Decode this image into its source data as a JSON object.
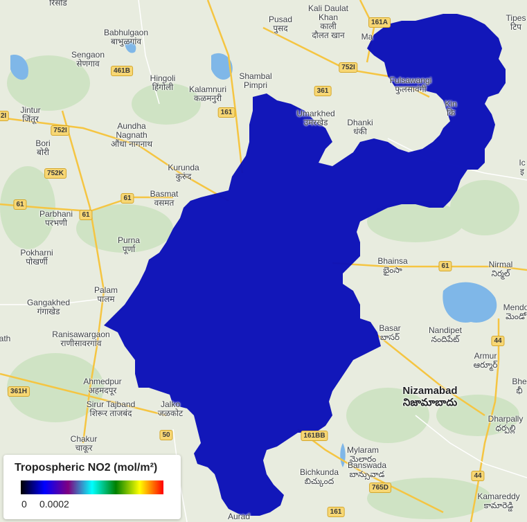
{
  "layer": {
    "fill_color": "#0a0fb8",
    "legend": {
      "title": "Tropospheric NO2 (mol/m²)",
      "min_label": "0",
      "max_label": "0.0002",
      "palette": [
        "#000000",
        "#0000ff",
        "#800080",
        "#00ffff",
        "#008000",
        "#ffff00",
        "#ff0000"
      ]
    }
  },
  "basemap": {
    "land_color": "#e8ecdf",
    "water_color": "#7fb7e8",
    "road_color": "#f5c542",
    "places": {
      "risod": {
        "name": "रिसोड",
        "local": ""
      },
      "pusad": {
        "name": "Pusad",
        "local": "पुसद"
      },
      "kali_daulat": {
        "name": "Kali Daulat",
        "local": "Khan"
      },
      "kali_daulat_2": {
        "name": "काली",
        "local": "दौलत खान"
      },
      "tipeshwar": {
        "name": "Tipes",
        "local": "टिप"
      },
      "babhulgaon": {
        "name": "Babhulgaon",
        "local": "बाभुळगांव"
      },
      "sengaon": {
        "name": "Sengaon",
        "local": "सेणगाव"
      },
      "hingoli": {
        "name": "Hingoli",
        "local": "हिंगोली"
      },
      "kalamnuri": {
        "name": "Kalamnuri",
        "local": "कळमनुरी"
      },
      "shambal": {
        "name": "Shambal",
        "local": "Pimpri"
      },
      "fulsawangi": {
        "name": "Fulsawangi",
        "local": "फुलसावंगी"
      },
      "umarkhed": {
        "name": "Umarkhed",
        "local": "उमरखेड"
      },
      "dhanki": {
        "name": "Dhanki",
        "local": "धंकी"
      },
      "jintur": {
        "name": "Jintur",
        "local": "जिंतूर"
      },
      "aundha": {
        "name": "Aundha",
        "local": "Nagnath"
      },
      "aundha_local": {
        "name": "औंधा नागनाथ",
        "local": ""
      },
      "bori": {
        "name": "Bori",
        "local": "बोरी"
      },
      "kurunda": {
        "name": "Kurunda",
        "local": "कुरुंद"
      },
      "basmat": {
        "name": "Basmat",
        "local": "वसमत"
      },
      "parbhani": {
        "name": "Parbhani",
        "local": "परभणी"
      },
      "purna": {
        "name": "Purna",
        "local": "पूर्णा"
      },
      "pokharni": {
        "name": "Pokharni",
        "local": "पोखर्णी"
      },
      "palam": {
        "name": "Palam",
        "local": "पालम"
      },
      "gangakhed": {
        "name": "Gangakhed",
        "local": "गंगाखेड"
      },
      "ranisawargaon": {
        "name": "Ranisawargaon",
        "local": "राणीसावरगांव"
      },
      "ahmedpur": {
        "name": "Ahmedpur",
        "local": "अहमदपूर"
      },
      "sirur": {
        "name": "Sirur Tajband",
        "local": "शिरूर ताजबंद"
      },
      "jalkot": {
        "name": "Jalko",
        "local": "जळकोट"
      },
      "chakur": {
        "name": "Chakur",
        "local": "चाकूर"
      },
      "bhainsa": {
        "name": "Bhainsa",
        "local": "భైంసా"
      },
      "nirmal": {
        "name": "Nirmal",
        "local": "నిర్మల్"
      },
      "mendora": {
        "name": "Mendo",
        "local": "మెండో"
      },
      "basar": {
        "name": "Basar",
        "local": "బాసర్"
      },
      "nandipet": {
        "name": "Nandipet",
        "local": "నందిపేట్"
      },
      "armur": {
        "name": "Armur",
        "local": "ఆర్మూర్"
      },
      "nizamabad": {
        "name": "Nizamabad",
        "local": "నిజామాబాదు"
      },
      "bheem": {
        "name": "Bhe",
        "local": "భీ"
      },
      "dharpally": {
        "name": "Dharpally",
        "local": "ధర్పల్లి"
      },
      "mylaram": {
        "name": "Mylaram",
        "local": "మైలారం"
      },
      "bichkunda": {
        "name": "Bichkunda",
        "local": "బిచ్కుంద"
      },
      "banswada": {
        "name": "Banswada",
        "local": "బాన్సువాడ"
      },
      "kamareddy": {
        "name": "Kamareddy",
        "local": "కామారెడ్డి"
      },
      "aurad": {
        "name": "Aurad",
        "local": ""
      },
      "kinwat": {
        "name": "Kin",
        "local": "कि"
      },
      "ma": {
        "name": "Ma",
        "local": ""
      },
      "ath": {
        "name": "ath",
        "local": ""
      },
      "ic": {
        "name": "Ic",
        "local": "इ"
      }
    },
    "highways": {
      "h161a": "161A",
      "h461b": "461B",
      "h752i": "752I",
      "h361": "361",
      "h161": "161",
      "h2i": "2I",
      "h752i_b": "752I",
      "h752k": "752K",
      "h61a": "61",
      "h61b": "61",
      "h61c": "61",
      "h61d": "61",
      "h44a": "44",
      "h44b": "44",
      "h361h": "361H",
      "h50": "50",
      "h161bb": "161BB",
      "h765d": "765D",
      "h161b": "161"
    }
  }
}
